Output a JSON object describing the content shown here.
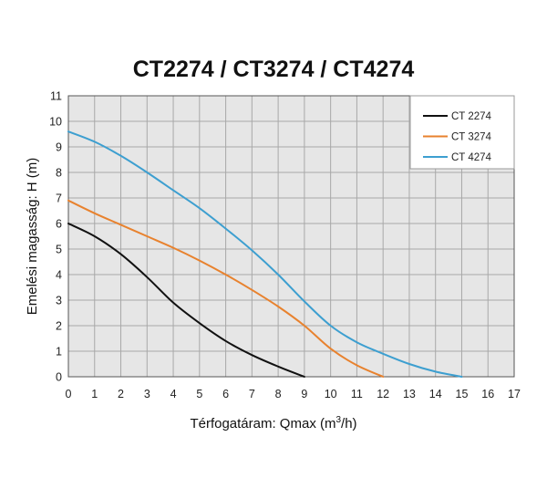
{
  "chart_data": {
    "type": "line",
    "title": "CT2274 / CT3274 / CT4274",
    "xlabel_prefix": "Térfogatáram: Qmax (m",
    "xlabel_sup": "3",
    "xlabel_suffix": "/h)",
    "ylabel": "Emelési magasság: H (m)",
    "xlim": [
      0,
      17
    ],
    "ylim": [
      0,
      11
    ],
    "xticks": [
      "0",
      "1",
      "2",
      "3",
      "4",
      "5",
      "6",
      "7",
      "8",
      "9",
      "10",
      "11",
      "12",
      "13",
      "14",
      "15",
      "16",
      "17"
    ],
    "yticks": [
      "0",
      "1",
      "2",
      "3",
      "4",
      "5",
      "6",
      "7",
      "8",
      "9",
      "10",
      "11"
    ],
    "grid": true,
    "plot_background": "#e6e6e6",
    "grid_color": "#a8a8a8",
    "legend_position": "top-right",
    "series": [
      {
        "name": "CT 2274",
        "color": "#111111",
        "points": [
          [
            0,
            6.0
          ],
          [
            1,
            5.5
          ],
          [
            2,
            4.8
          ],
          [
            3,
            3.9
          ],
          [
            4,
            2.9
          ],
          [
            5,
            2.1
          ],
          [
            6,
            1.4
          ],
          [
            7,
            0.85
          ],
          [
            8,
            0.4
          ],
          [
            9,
            0.0
          ]
        ]
      },
      {
        "name": "CT 3274",
        "color": "#e8822e",
        "points": [
          [
            0,
            6.9
          ],
          [
            1,
            6.4
          ],
          [
            2,
            5.95
          ],
          [
            3,
            5.5
          ],
          [
            4,
            5.05
          ],
          [
            5,
            4.55
          ],
          [
            6,
            4.0
          ],
          [
            7,
            3.4
          ],
          [
            8,
            2.75
          ],
          [
            9,
            2.0
          ],
          [
            10,
            1.1
          ],
          [
            11,
            0.45
          ],
          [
            12,
            0.0
          ]
        ]
      },
      {
        "name": "CT 4274",
        "color": "#3d9fd0",
        "points": [
          [
            0,
            9.6
          ],
          [
            1,
            9.2
          ],
          [
            2,
            8.65
          ],
          [
            3,
            8.0
          ],
          [
            4,
            7.3
          ],
          [
            5,
            6.6
          ],
          [
            6,
            5.8
          ],
          [
            7,
            4.95
          ],
          [
            8,
            4.0
          ],
          [
            9,
            2.95
          ],
          [
            10,
            2.0
          ],
          [
            11,
            1.35
          ],
          [
            12,
            0.9
          ],
          [
            13,
            0.5
          ],
          [
            14,
            0.2
          ],
          [
            15,
            0.0
          ]
        ]
      }
    ]
  }
}
